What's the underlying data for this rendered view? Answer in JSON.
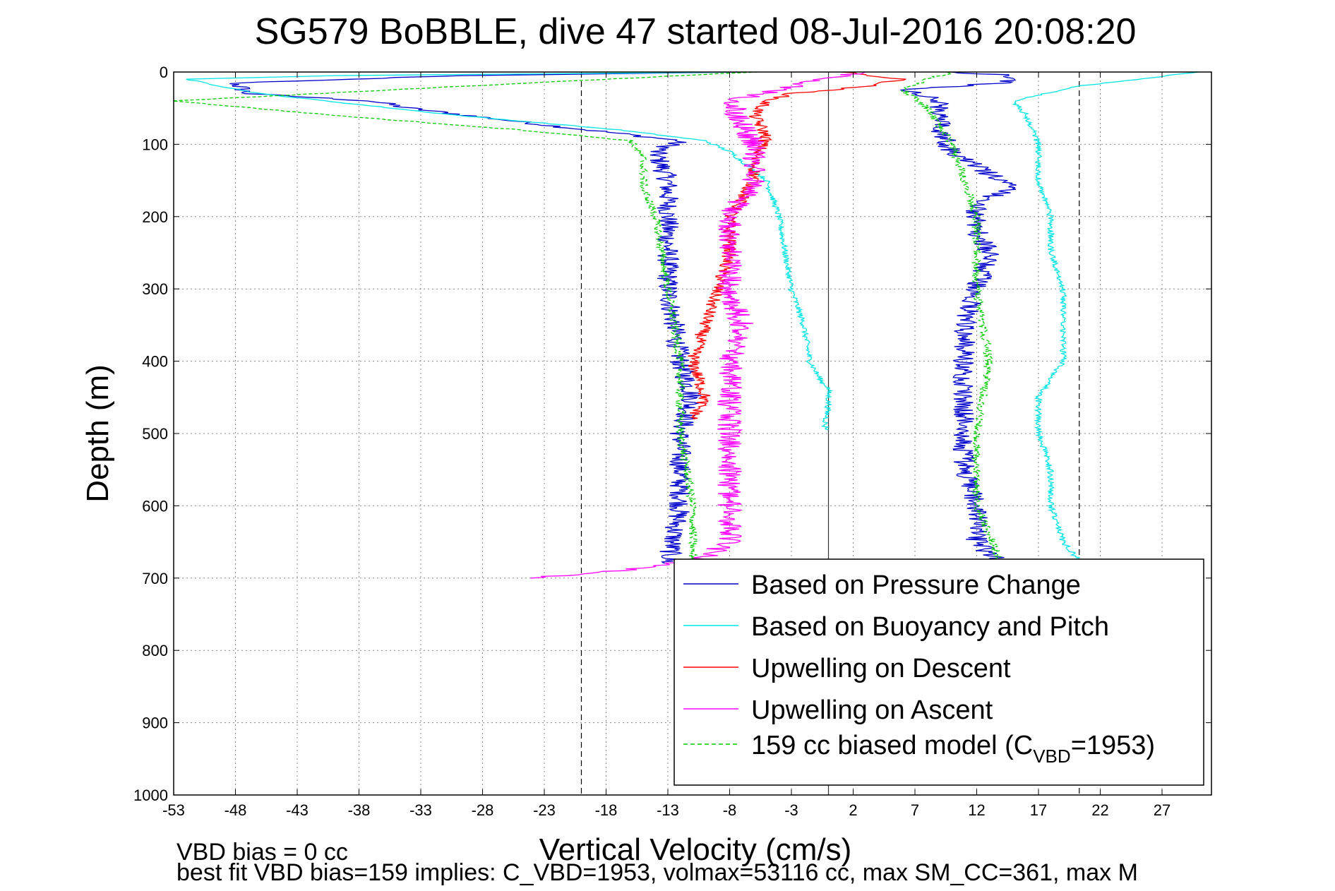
{
  "chart_data": {
    "type": "line",
    "title": "SG579 BoBBLE, dive 47 started 08-Jul-2016 20:08:20",
    "xlabel": "Vertical Velocity (cm/s)",
    "ylabel": "Depth (m)",
    "xlim": [
      -53,
      31
    ],
    "ylim": [
      0,
      1000
    ],
    "y_reversed": true,
    "grid": true,
    "xticks": [
      -53,
      -48,
      -43,
      -38,
      -33,
      -28,
      -23,
      -18,
      -13,
      -8,
      -3,
      2,
      7,
      12,
      17,
      22,
      27
    ],
    "yticks": [
      0,
      100,
      200,
      300,
      400,
      500,
      600,
      700,
      800,
      900,
      1000
    ],
    "reference_lines": [
      {
        "x": -20,
        "style": "dashed"
      },
      {
        "x": 0,
        "style": "solid"
      },
      {
        "x": 20.3,
        "style": "dashed"
      }
    ],
    "legend_position": "bottom-right",
    "legend": [
      {
        "label": "Based on Pressure Change",
        "color": "#0000cc",
        "style": "solid"
      },
      {
        "label": "Based on Buoyancy and Pitch",
        "color": "#00e5e5",
        "style": "solid"
      },
      {
        "label": "Upwelling on Descent",
        "color": "#ff0000",
        "style": "solid"
      },
      {
        "label": "Upwelling on Ascent",
        "color": "#ff00ff",
        "style": "solid"
      },
      {
        "label_parts": [
          "159 cc biased model (C",
          "VBD",
          "=1953)"
        ],
        "color": "#00cc00",
        "style": "dashed"
      }
    ],
    "series": [
      {
        "color": "#0000cc",
        "noise": 0.9,
        "descent": [
          [
            0,
            -7
          ],
          [
            5,
            -30
          ],
          [
            15,
            -48
          ],
          [
            30,
            -47
          ],
          [
            40,
            -37
          ],
          [
            50,
            -34
          ],
          [
            75,
            -22
          ],
          [
            95,
            -12
          ],
          [
            110,
            -14
          ],
          [
            150,
            -13
          ],
          [
            200,
            -13
          ],
          [
            300,
            -13
          ],
          [
            400,
            -12
          ],
          [
            450,
            -11
          ],
          [
            500,
            -12
          ],
          [
            600,
            -12
          ],
          [
            680,
            -13
          ]
        ],
        "ascent": [
          [
            680,
            14
          ],
          [
            650,
            12
          ],
          [
            600,
            12
          ],
          [
            550,
            11
          ],
          [
            500,
            11
          ],
          [
            450,
            11
          ],
          [
            400,
            11
          ],
          [
            350,
            11
          ],
          [
            300,
            12
          ],
          [
            250,
            13
          ],
          [
            220,
            12
          ],
          [
            180,
            12
          ],
          [
            160,
            15
          ],
          [
            150,
            14
          ],
          [
            110,
            10
          ],
          [
            80,
            9
          ],
          [
            40,
            9
          ],
          [
            25,
            6
          ],
          [
            15,
            14
          ],
          [
            5,
            15
          ],
          [
            0,
            10
          ]
        ]
      },
      {
        "color": "#00e5e5",
        "noise": 0.25,
        "descent": [
          [
            0,
            -7
          ],
          [
            5,
            -40
          ],
          [
            10,
            -52
          ],
          [
            30,
            -46
          ],
          [
            60,
            -30
          ],
          [
            80,
            -17
          ],
          [
            95,
            -10
          ],
          [
            110,
            -8
          ],
          [
            150,
            -5
          ],
          [
            200,
            -4
          ],
          [
            300,
            -3
          ],
          [
            350,
            -2
          ],
          [
            400,
            -1.5
          ],
          [
            430,
            -0.5
          ],
          [
            436,
            0
          ],
          [
            460,
            0
          ],
          [
            490,
            -0.3
          ],
          [
            495,
            0
          ]
        ],
        "ascent": [
          [
            690,
            21
          ],
          [
            650,
            19
          ],
          [
            600,
            18
          ],
          [
            550,
            18
          ],
          [
            500,
            17
          ],
          [
            450,
            17
          ],
          [
            400,
            19
          ],
          [
            350,
            19
          ],
          [
            300,
            19
          ],
          [
            250,
            18
          ],
          [
            200,
            18
          ],
          [
            150,
            17
          ],
          [
            100,
            17
          ],
          [
            60,
            16
          ],
          [
            40,
            15
          ],
          [
            20,
            20
          ],
          [
            0,
            30
          ]
        ]
      },
      {
        "color": "#ff0000",
        "noise": 0.55,
        "descent": [
          [
            0,
            1
          ],
          [
            10,
            6
          ],
          [
            20,
            3
          ],
          [
            30,
            -3
          ],
          [
            40,
            -5
          ],
          [
            60,
            -6
          ],
          [
            90,
            -5
          ],
          [
            120,
            -6
          ],
          [
            150,
            -6
          ],
          [
            200,
            -8
          ],
          [
            250,
            -8
          ],
          [
            300,
            -9
          ],
          [
            350,
            -10
          ],
          [
            400,
            -11
          ],
          [
            450,
            -10
          ],
          [
            480,
            -11
          ]
        ]
      },
      {
        "color": "#ff00ff",
        "noise": 1.0,
        "descent": [
          [
            700,
            -24
          ],
          [
            685,
            -14
          ],
          [
            670,
            -10
          ],
          [
            650,
            -8
          ],
          [
            600,
            -8
          ],
          [
            550,
            -8
          ],
          [
            500,
            -8
          ],
          [
            450,
            -8
          ],
          [
            400,
            -8
          ],
          [
            350,
            -7
          ],
          [
            300,
            -8
          ],
          [
            250,
            -8
          ],
          [
            200,
            -8
          ],
          [
            150,
            -6
          ],
          [
            100,
            -6
          ],
          [
            70,
            -7
          ],
          [
            40,
            -8
          ],
          [
            20,
            -3
          ],
          [
            5,
            1
          ],
          [
            0,
            3
          ]
        ]
      },
      {
        "color": "#00cc00",
        "noise": 0.35,
        "dashed": true,
        "descent": [
          [
            0,
            -6
          ],
          [
            20,
            -30
          ],
          [
            40,
            -53
          ],
          [
            60,
            -40
          ],
          [
            80,
            -25
          ],
          [
            95,
            -16
          ],
          [
            120,
            -15
          ],
          [
            160,
            -15
          ],
          [
            200,
            -14
          ],
          [
            300,
            -13
          ],
          [
            400,
            -12
          ],
          [
            500,
            -12
          ],
          [
            600,
            -11
          ],
          [
            680,
            -11
          ]
        ],
        "ascent": [
          [
            680,
            14
          ],
          [
            600,
            12
          ],
          [
            500,
            12
          ],
          [
            400,
            13
          ],
          [
            300,
            12
          ],
          [
            200,
            12
          ],
          [
            100,
            10
          ],
          [
            50,
            8
          ],
          [
            35,
            7
          ],
          [
            25,
            6
          ],
          [
            10,
            8
          ],
          [
            0,
            10
          ]
        ]
      }
    ]
  },
  "footer": {
    "line1": "VBD bias = 0 cc",
    "line2": "best fit VBD bias=159 implies: C_VBD=1953, volmax=53116 cc, max SM_CC=361, max M"
  }
}
